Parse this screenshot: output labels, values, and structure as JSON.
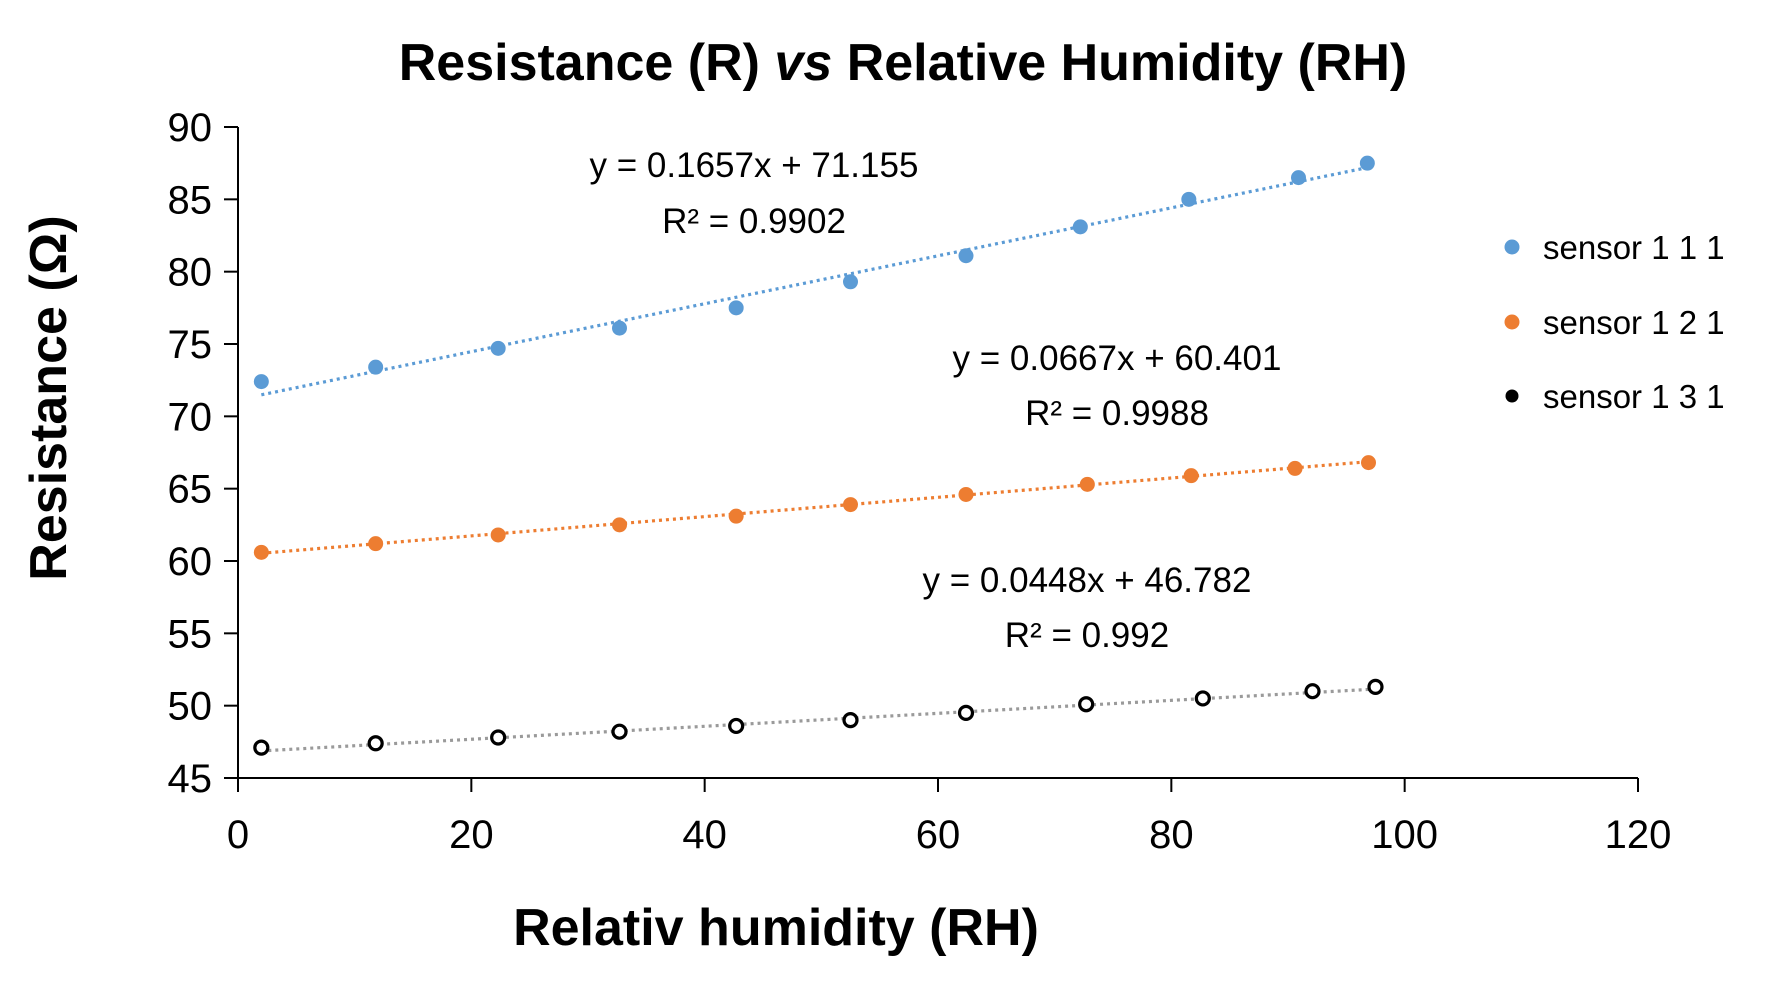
{
  "chart_data": {
    "type": "scatter",
    "title_parts": [
      "Resistance (R) ",
      "vs",
      " Relative Humidity (RH)"
    ],
    "xlabel": "Relativ humidity (RH)",
    "ylabel": "Resistance (Ω)",
    "xlim": [
      0,
      120
    ],
    "ylim": [
      45,
      90
    ],
    "xticks": [
      0,
      20,
      40,
      60,
      80,
      100,
      120
    ],
    "yticks": [
      45,
      50,
      55,
      60,
      65,
      70,
      75,
      80,
      85,
      90
    ],
    "grid": false,
    "legend_position": "right",
    "series": [
      {
        "name": "sensor 1 1 1",
        "color": "#5B9BD5",
        "x": [
          2,
          11.8,
          22.3,
          32.7,
          42.7,
          52.5,
          62.4,
          72.2,
          81.5,
          90.9,
          96.8
        ],
        "y": [
          72.4,
          73.4,
          74.7,
          76.1,
          77.5,
          79.3,
          81.1,
          83.1,
          85.0,
          86.5,
          87.5
        ],
        "trend": {
          "slope": 0.1657,
          "intercept": 71.155,
          "x_range": [
            2,
            97
          ]
        },
        "equation": "y = 0.1657x + 71.155",
        "r_squared": "R² = 0.9902"
      },
      {
        "name": "sensor 1 2 1",
        "color": "#ED7D31",
        "x": [
          2,
          11.8,
          22.3,
          32.7,
          42.7,
          52.5,
          62.4,
          72.8,
          81.7,
          90.6,
          96.9
        ],
        "y": [
          60.6,
          61.2,
          61.8,
          62.5,
          63.1,
          63.9,
          64.6,
          65.3,
          65.9,
          66.4,
          66.8
        ],
        "trend": {
          "slope": 0.0667,
          "intercept": 60.401,
          "x_range": [
            2,
            97
          ]
        },
        "equation": "y = 0.0667x + 60.401",
        "r_squared": "R² = 0.9988"
      },
      {
        "name": "sensor 1 3 1",
        "color": "#000000",
        "x": [
          2,
          11.8,
          22.3,
          32.7,
          42.7,
          52.5,
          62.4,
          72.7,
          82.7,
          92.1,
          97.5
        ],
        "y": [
          47.1,
          47.4,
          47.8,
          48.2,
          48.6,
          49.0,
          49.5,
          50.1,
          50.5,
          51.0,
          51.3
        ],
        "trend": {
          "slope": 0.0448,
          "intercept": 46.782,
          "x_range": [
            2,
            97.5
          ]
        },
        "equation": "y = 0.0448x + 46.782",
        "r_squared": "R² = 0.992"
      }
    ]
  }
}
